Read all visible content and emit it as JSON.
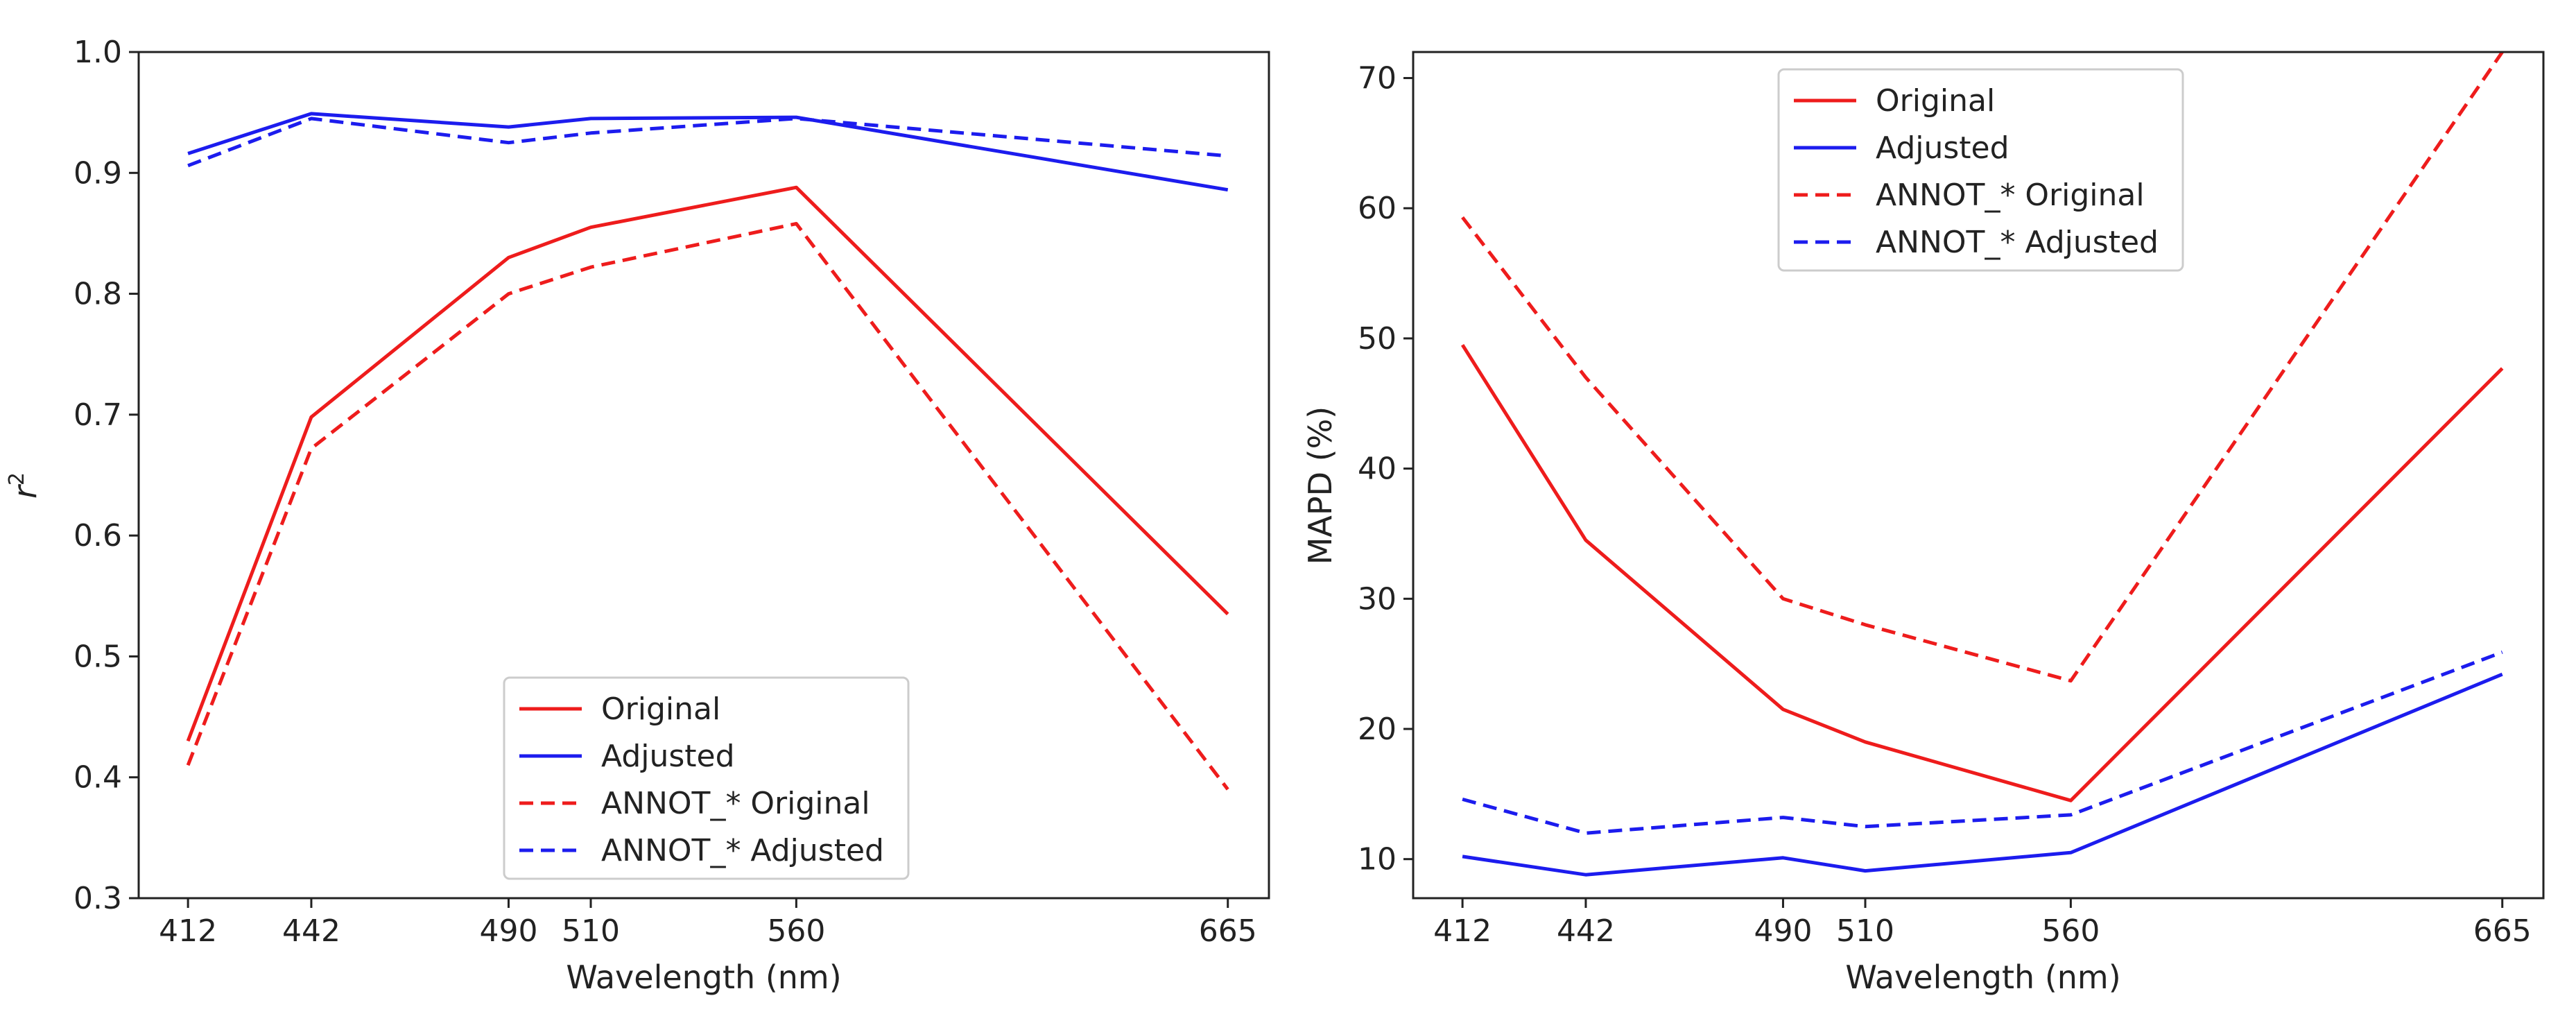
{
  "chart_data": [
    {
      "type": "line",
      "x": [
        412,
        442,
        490,
        510,
        560,
        665
      ],
      "xlabel": "Wavelength (nm)",
      "ylabel": "r",
      "ylabel_superscript": "2",
      "xlim": [
        400,
        675
      ],
      "ylim": [
        0.3,
        1.0
      ],
      "xticks": [
        412,
        442,
        490,
        510,
        560,
        665
      ],
      "yticks": [
        "0.3",
        "0.4",
        "0.5",
        "0.6",
        "0.7",
        "0.8",
        "0.9",
        "1.0"
      ],
      "legend_position": "lower-center",
      "series": [
        {
          "name": "Original",
          "color": "#ee1c1c",
          "style": "solid",
          "values": [
            0.43,
            0.698,
            0.83,
            0.855,
            0.888,
            0.535
          ]
        },
        {
          "name": "Adjusted",
          "color": "#1c1cee",
          "style": "solid",
          "values": [
            0.916,
            0.949,
            0.938,
            0.945,
            0.946,
            0.886
          ]
        },
        {
          "name": "ANNOT_* Original",
          "color": "#ee1c1c",
          "style": "dashed",
          "values": [
            0.41,
            0.672,
            0.8,
            0.822,
            0.858,
            0.39
          ]
        },
        {
          "name": "ANNOT_* Adjusted",
          "color": "#1c1cee",
          "style": "dashed",
          "values": [
            0.906,
            0.945,
            0.925,
            0.933,
            0.945,
            0.914
          ]
        }
      ]
    },
    {
      "type": "line",
      "x": [
        412,
        442,
        490,
        510,
        560,
        665
      ],
      "xlabel": "Wavelength (nm)",
      "ylabel": "MAPD (%)",
      "xlim": [
        400,
        675
      ],
      "ylim": [
        7,
        72
      ],
      "xticks": [
        412,
        442,
        490,
        510,
        560,
        665
      ],
      "yticks": [
        "10",
        "20",
        "30",
        "40",
        "50",
        "60",
        "70"
      ],
      "legend_position": "top-center",
      "series": [
        {
          "name": "Original",
          "color": "#ee1c1c",
          "style": "solid",
          "values": [
            49.5,
            34.5,
            21.5,
            19.0,
            14.5,
            47.7
          ]
        },
        {
          "name": "Adjusted",
          "color": "#1c1cee",
          "style": "solid",
          "values": [
            10.2,
            8.8,
            10.1,
            9.1,
            10.5,
            24.2
          ]
        },
        {
          "name": "ANNOT_* Original",
          "color": "#ee1c1c",
          "style": "dashed",
          "values": [
            59.3,
            47.0,
            30.0,
            28.0,
            23.7,
            72.5
          ]
        },
        {
          "name": "ANNOT_* Adjusted",
          "color": "#1c1cee",
          "style": "dashed",
          "values": [
            14.6,
            12.0,
            13.2,
            12.5,
            13.4,
            25.9
          ]
        }
      ]
    }
  ]
}
